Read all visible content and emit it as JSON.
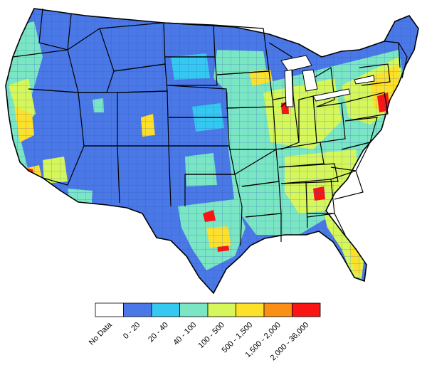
{
  "legend": {
    "classes": [
      {
        "label": "No Data",
        "color": "#ffffff"
      },
      {
        "label": "0 - 20",
        "color": "#4a78e6"
      },
      {
        "label": "20 - 40",
        "color": "#35c8f0"
      },
      {
        "label": "40 - 100",
        "color": "#7ae6c4"
      },
      {
        "label": "100 - 500",
        "color": "#d6f75a"
      },
      {
        "label": "500 - 1,500",
        "color": "#fde02a"
      },
      {
        "label": "1,500 - 2,000",
        "color": "#fb8e14"
      },
      {
        "label": "2,000 - 36,000",
        "color": "#fb1414"
      }
    ]
  },
  "colors": {
    "base_fill": "#4a78e6",
    "state_border": "#000000",
    "county_line": "#2a53b8"
  }
}
